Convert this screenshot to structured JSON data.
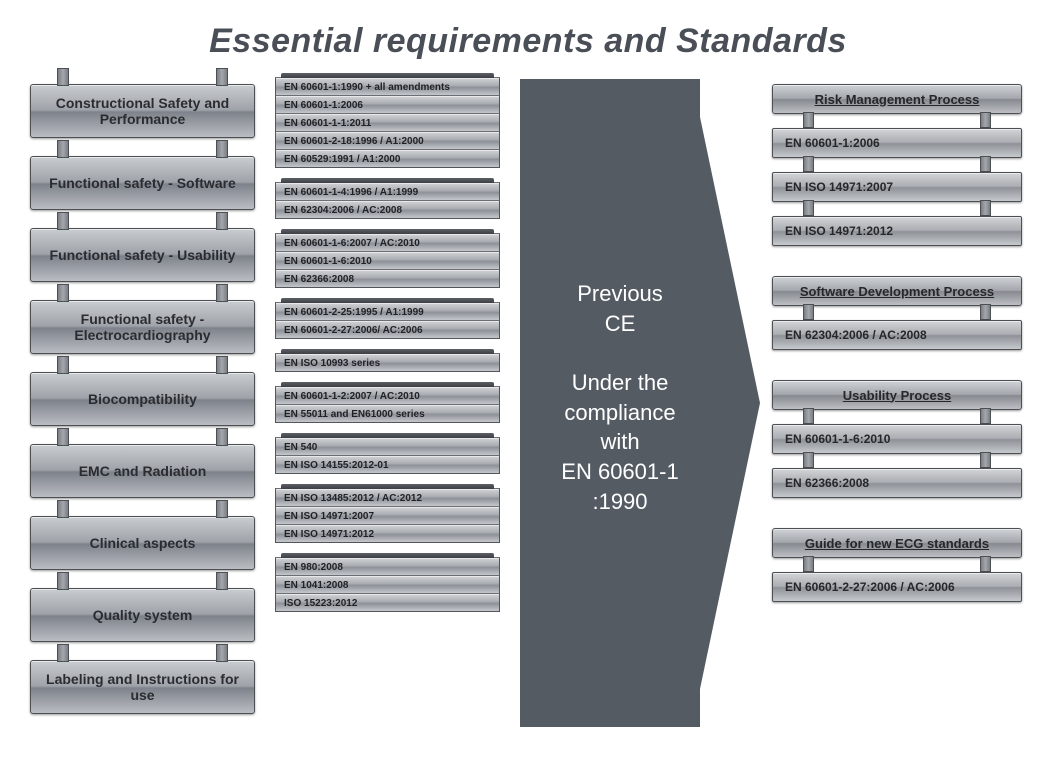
{
  "title": "Essential requirements and Standards",
  "title_color": "#4a4f57",
  "title_fontsize": 34,
  "background_color": "#ffffff",
  "arrow": {
    "bg_color": "#545b63",
    "text_color": "#ffffff",
    "line1": "Previous",
    "line2": "CE",
    "line3": "Under the",
    "line4": "compliance",
    "line5": "with",
    "line6": "EN 60601-1",
    "line7": ":1990"
  },
  "categories": [
    "Constructional Safety and Performance",
    "Functional safety - Software",
    "Functional safety - Usability",
    "Functional safety - Electrocardiography",
    "Biocompatibility",
    "EMC and Radiation",
    "Clinical aspects",
    "Quality system",
    "Labeling and Instructions for use"
  ],
  "standards_groups": [
    [
      "EN 60601-1:1990 + all amendments",
      "EN 60601-1:2006",
      "EN 60601-1-1:2011",
      "EN 60601-2-18:1996 / A1:2000",
      "EN 60529:1991 / A1:2000"
    ],
    [
      "EN 60601-1-4:1996 / A1:1999",
      "EN 62304:2006 / AC:2008"
    ],
    [
      "EN 60601-1-6:2007 / AC:2010",
      "EN 60601-1-6:2010",
      "EN 62366:2008"
    ],
    [
      "EN 60601-2-25:1995 / A1:1999",
      "EN 60601-2-27:2006/ AC:2006"
    ],
    [
      "EN ISO 10993 series"
    ],
    [
      "EN 60601-1-2:2007 / AC:2010",
      "EN 55011 and EN61000 series"
    ],
    [
      "EN 540",
      "EN ISO 14155:2012-01"
    ],
    [
      "EN ISO 13485:2012 / AC:2012",
      "EN ISO 14971:2007",
      "EN ISO 14971:2012"
    ],
    [
      "EN 980:2008",
      "EN 1041:2008",
      "ISO 15223:2012"
    ]
  ],
  "processes": [
    {
      "header": "Risk Management Process",
      "items": [
        "EN 60601-1:2006",
        "EN ISO 14971:2007",
        "EN ISO 14971:2012"
      ]
    },
    {
      "header": "Software Development Process",
      "items": [
        "EN 62304:2006 / AC:2008"
      ]
    },
    {
      "header": "Usability Process",
      "items": [
        "EN 60601-1-6:2010",
        "EN 62366:2008"
      ]
    },
    {
      "header": "Guide for new ECG standards",
      "items": [
        "EN 60601-2-27:2006 / AC:2006"
      ]
    }
  ],
  "palette": {
    "bar_gradient": [
      "#d2d4d7",
      "#a9acb1",
      "#8d9198",
      "#c4c7cb"
    ],
    "border": "#4d5053",
    "text_dark": "#25272b"
  }
}
